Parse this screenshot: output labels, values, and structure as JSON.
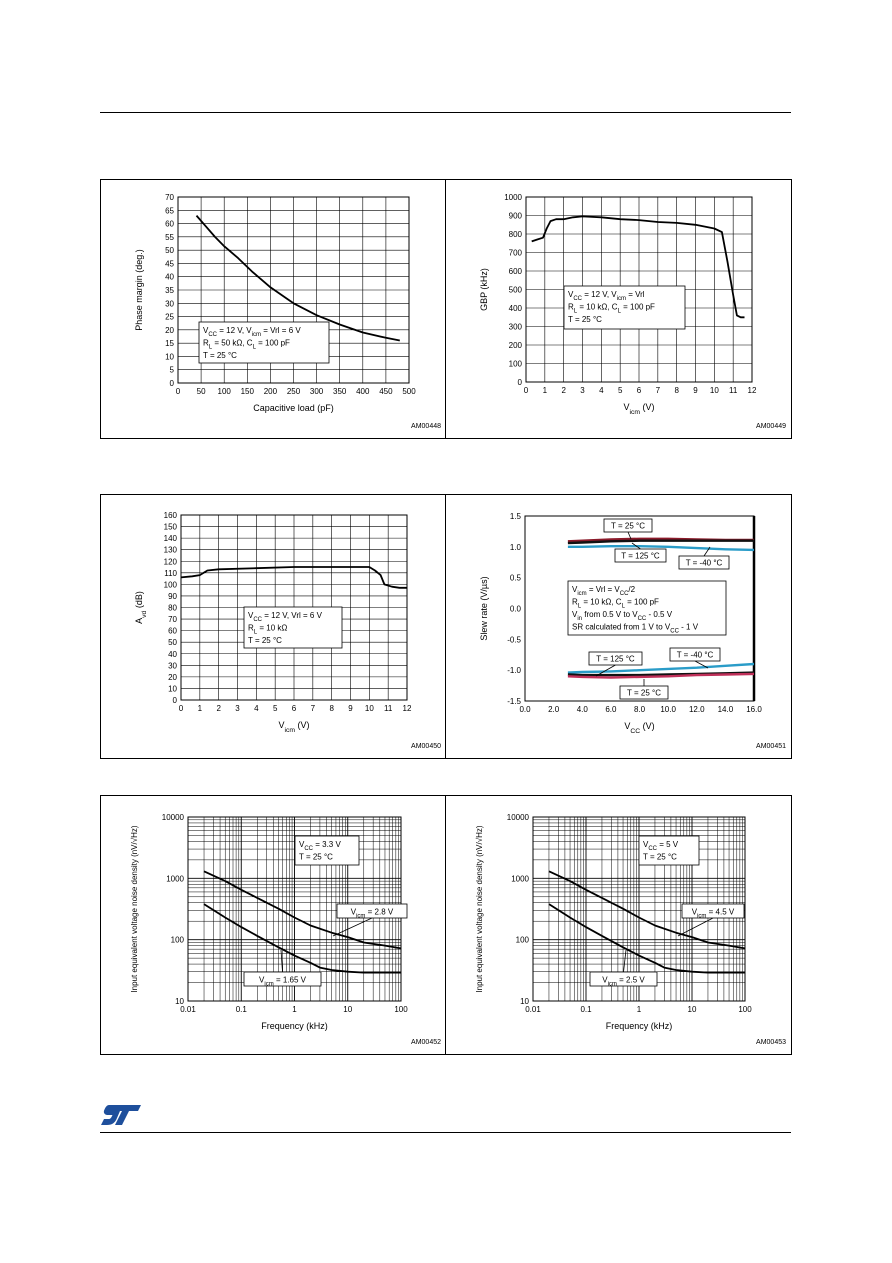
{
  "page": {
    "logo_text": "ST"
  },
  "chart_data": [
    {
      "id": "c1",
      "type": "line",
      "code": "AM00448",
      "xlabel": "Capacitive load (pF)",
      "ylabel": "Phase margin (deg.)",
      "xlim": [
        0,
        500
      ],
      "ylim": [
        0,
        70
      ],
      "xticks": [
        0,
        50,
        100,
        150,
        200,
        250,
        300,
        350,
        400,
        450,
        500
      ],
      "yticks": [
        0,
        5,
        10,
        15,
        20,
        25,
        30,
        35,
        40,
        45,
        50,
        55,
        60,
        65,
        70
      ],
      "grid": true,
      "series": [
        {
          "color": "#000000",
          "x": [
            40,
            60,
            80,
            100,
            130,
            160,
            200,
            250,
            300,
            350,
            400,
            450,
            480
          ],
          "y": [
            63,
            59,
            55,
            51.5,
            47,
            42,
            36,
            30,
            25.5,
            22,
            19,
            17,
            16
          ]
        }
      ],
      "annotation_lines": [
        {
          "parts": [
            [
              "V",
              ""
            ],
            [
              "CC",
              "sub"
            ],
            [
              " = 12 V, V",
              ""
            ],
            [
              "icm",
              "sub"
            ],
            [
              " = Vrl = 6 V",
              ""
            ]
          ]
        },
        {
          "parts": [
            [
              "R",
              ""
            ],
            [
              "L",
              "sub"
            ],
            [
              " = 50 kΩ, C",
              ""
            ],
            [
              "L",
              "sub"
            ],
            [
              " = 100 pF",
              ""
            ]
          ]
        },
        {
          "parts": [
            [
              "T = 25 °C",
              ""
            ]
          ]
        }
      ]
    },
    {
      "id": "c2",
      "type": "line",
      "code": "AM00449",
      "xlabel": "V",
      "xlabel_sub": "icm",
      "xlabel_suffix": " (V)",
      "ylabel": "GBP (kHz)",
      "xlim": [
        0,
        12
      ],
      "ylim": [
        0,
        1000
      ],
      "xticks": [
        0,
        1,
        2,
        3,
        4,
        5,
        6,
        7,
        8,
        9,
        10,
        11,
        12
      ],
      "yticks": [
        0,
        100,
        200,
        300,
        400,
        500,
        600,
        700,
        800,
        900,
        1000
      ],
      "grid": true,
      "series": [
        {
          "color": "#000000",
          "x": [
            0.3,
            0.6,
            0.9,
            1.1,
            1.3,
            1.6,
            2,
            2.5,
            3,
            4,
            5,
            6,
            7,
            8,
            9,
            10,
            10.4,
            10.7,
            11,
            11.2,
            11.4,
            11.6
          ],
          "y": [
            760,
            770,
            780,
            830,
            870,
            880,
            880,
            890,
            895,
            890,
            880,
            875,
            865,
            860,
            850,
            830,
            810,
            650,
            470,
            360,
            350,
            350
          ]
        }
      ],
      "annotation_lines": [
        {
          "parts": [
            [
              "V",
              ""
            ],
            [
              "CC",
              "sub"
            ],
            [
              " = 12 V, V",
              ""
            ],
            [
              "icm",
              "sub"
            ],
            [
              " = Vrl",
              ""
            ]
          ]
        },
        {
          "parts": [
            [
              "R",
              ""
            ],
            [
              "L",
              "sub"
            ],
            [
              " = 10 kΩ, C",
              ""
            ],
            [
              "L",
              "sub"
            ],
            [
              " = 100 pF",
              ""
            ]
          ]
        },
        {
          "parts": [
            [
              "T = 25 °C",
              ""
            ]
          ]
        }
      ]
    },
    {
      "id": "c3",
      "type": "line",
      "code": "AM00450",
      "xlabel": "V",
      "xlabel_sub": "icm",
      "xlabel_suffix": " (V)",
      "ylabel": "A",
      "ylabel_sub": "vd",
      "ylabel_suffix": " (dB)",
      "xlim": [
        0,
        12
      ],
      "ylim": [
        0,
        160
      ],
      "xticks": [
        0,
        1,
        2,
        3,
        4,
        5,
        6,
        7,
        8,
        9,
        10,
        11,
        12
      ],
      "yticks": [
        0,
        10,
        20,
        30,
        40,
        50,
        60,
        70,
        80,
        90,
        100,
        110,
        120,
        130,
        140,
        150,
        160
      ],
      "grid": true,
      "series": [
        {
          "color": "#000000",
          "x": [
            0,
            0.6,
            1,
            1.4,
            2,
            4,
            6,
            8,
            9,
            10,
            10.3,
            10.6,
            10.8,
            11.2,
            11.6,
            12
          ],
          "y": [
            106,
            107,
            108,
            112,
            113,
            114,
            115,
            115,
            115,
            115,
            112,
            108,
            100,
            98,
            97,
            97
          ]
        }
      ],
      "annotation_lines": [
        {
          "parts": [
            [
              "V",
              ""
            ],
            [
              "CC",
              "sub"
            ],
            [
              " = 12 V, Vrl = 6 V",
              ""
            ]
          ]
        },
        {
          "parts": [
            [
              "R",
              ""
            ],
            [
              "L",
              "sub"
            ],
            [
              " = 10 kΩ",
              ""
            ]
          ]
        },
        {
          "parts": [
            [
              "T = 25 °C",
              ""
            ]
          ]
        }
      ]
    },
    {
      "id": "c4",
      "type": "line",
      "code": "AM00451",
      "xlabel": "V",
      "xlabel_sub": "CC",
      "xlabel_suffix": " (V)",
      "ylabel": "Slew rate (V/µs)",
      "xlim": [
        0,
        16
      ],
      "ylim": [
        -1.5,
        1.5
      ],
      "xticks": [
        0.0,
        2.0,
        4.0,
        6.0,
        8.0,
        10.0,
        12.0,
        14.0,
        16.0
      ],
      "xtick_decimals": 1,
      "ytick_decimals": 1,
      "yticks": [
        -1.5,
        -1.0,
        -0.5,
        0.0,
        0.5,
        1.0,
        1.5
      ],
      "grid": false,
      "series": [
        {
          "name": "T = 25 °C",
          "color": "#8b1a2a",
          "x": [
            3,
            4,
            6,
            8,
            10,
            12,
            14,
            16
          ],
          "y": [
            1.09,
            1.1,
            1.12,
            1.13,
            1.13,
            1.12,
            1.11,
            1.11
          ]
        },
        {
          "name": "T = 125 °C",
          "color": "#111111",
          "x": [
            3,
            4,
            6,
            8,
            10,
            12,
            14,
            16
          ],
          "y": [
            1.06,
            1.07,
            1.09,
            1.1,
            1.1,
            1.1,
            1.1,
            1.1
          ]
        },
        {
          "name": "T = -40 °C",
          "color": "#2a9cc8",
          "x": [
            3,
            4,
            6,
            8,
            10,
            12,
            14,
            16
          ],
          "y": [
            1.0,
            1.0,
            1.01,
            1.01,
            1.0,
            0.98,
            0.96,
            0.95
          ]
        },
        {
          "name": "T = -40 °C",
          "color": "#2a9cc8",
          "x": [
            3,
            4,
            6,
            8,
            10,
            12,
            14,
            16
          ],
          "y": [
            -1.04,
            -1.03,
            -1.02,
            -1.0,
            -0.98,
            -0.96,
            -0.93,
            -0.9
          ]
        },
        {
          "name": "T = 125 °C",
          "color": "#111111",
          "x": [
            3,
            4,
            6,
            8,
            10,
            12,
            14,
            16
          ],
          "y": [
            -1.07,
            -1.08,
            -1.08,
            -1.08,
            -1.07,
            -1.06,
            -1.05,
            -1.04
          ]
        },
        {
          "name": "T = 25 °C",
          "color": "#c0305a",
          "x": [
            3,
            4,
            6,
            8,
            10,
            12,
            14,
            16
          ],
          "y": [
            -1.1,
            -1.11,
            -1.12,
            -1.11,
            -1.1,
            -1.08,
            -1.07,
            -1.06
          ]
        }
      ],
      "annotation_lines": [
        {
          "parts": [
            [
              "V",
              ""
            ],
            [
              "icm",
              "sub"
            ],
            [
              " = Vrl = V",
              ""
            ],
            [
              "CC",
              "sub"
            ],
            [
              "/2",
              ""
            ]
          ]
        },
        {
          "parts": [
            [
              "R",
              ""
            ],
            [
              "L",
              "sub"
            ],
            [
              " = 10 kΩ, C",
              ""
            ],
            [
              "L",
              "sub"
            ],
            [
              " = 100 pF",
              ""
            ]
          ]
        },
        {
          "parts": [
            [
              "V",
              ""
            ],
            [
              "in",
              "sub"
            ],
            [
              " from 0.5 V to V",
              ""
            ],
            [
              "CC",
              "sub"
            ],
            [
              " - 0.5 V",
              ""
            ]
          ]
        },
        {
          "parts": [
            [
              "SR calculated from 1 V to V",
              ""
            ],
            [
              "CC",
              "sub"
            ],
            [
              " - 1 V",
              ""
            ]
          ]
        }
      ]
    },
    {
      "id": "c5",
      "type": "line",
      "code": "AM00452",
      "log": true,
      "xlabel": "Frequency (kHz)",
      "ylabel": "Input equivalent voltage noise density (nV/√Hz)",
      "xlim": [
        0.01,
        100
      ],
      "ylim": [
        10,
        10000
      ],
      "xticks": [
        0.01,
        0.1,
        1,
        10,
        100
      ],
      "xtick_labels": [
        "0.01",
        "0.1",
        "1",
        "10",
        "100"
      ],
      "yticks": [
        10,
        100,
        1000,
        10000
      ],
      "ytick_labels": [
        "10",
        "100",
        "1000",
        "10000"
      ],
      "grid": true,
      "series": [
        {
          "name": "V icm = 2.8 V",
          "color": "#000000",
          "x": [
            0.02,
            0.05,
            0.1,
            0.2,
            0.5,
            1,
            2,
            5,
            10,
            20,
            50,
            100
          ],
          "y": [
            1300,
            900,
            650,
            480,
            320,
            230,
            170,
            130,
            110,
            90,
            80,
            72
          ]
        },
        {
          "name": "V icm = 1.65 V",
          "color": "#000000",
          "x": [
            0.02,
            0.05,
            0.1,
            0.2,
            0.5,
            1,
            2,
            3,
            5,
            10,
            20,
            50,
            100
          ],
          "y": [
            380,
            230,
            160,
            115,
            75,
            55,
            42,
            35,
            32,
            30,
            29,
            29,
            29
          ]
        }
      ],
      "annotation_lines": [
        {
          "parts": [
            [
              "V",
              ""
            ],
            [
              "CC",
              "sub"
            ],
            [
              " = 3.3 V",
              ""
            ]
          ]
        },
        {
          "parts": [
            [
              "T = 25 °C",
              ""
            ]
          ]
        }
      ]
    },
    {
      "id": "c6",
      "type": "line",
      "code": "AM00453",
      "log": true,
      "xlabel": "Frequency (kHz)",
      "ylabel": "Input equivalent voltage noise density (nV/√Hz)",
      "xlim": [
        0.01,
        100
      ],
      "ylim": [
        10,
        10000
      ],
      "xticks": [
        0.01,
        0.1,
        1,
        10,
        100
      ],
      "xtick_labels": [
        "0.01",
        "0.1",
        "1",
        "10",
        "100"
      ],
      "yticks": [
        10,
        100,
        1000,
        10000
      ],
      "ytick_labels": [
        "10",
        "100",
        "1000",
        "10000"
      ],
      "grid": true,
      "series": [
        {
          "name": "V icm = 4.5 V",
          "color": "#000000",
          "x": [
            0.02,
            0.05,
            0.1,
            0.2,
            0.5,
            1,
            2,
            5,
            10,
            20,
            50,
            100
          ],
          "y": [
            1300,
            900,
            650,
            480,
            320,
            230,
            170,
            130,
            110,
            90,
            80,
            72
          ]
        },
        {
          "name": "V icm = 2.5 V",
          "color": "#000000",
          "x": [
            0.02,
            0.05,
            0.1,
            0.2,
            0.5,
            1,
            2,
            3,
            5,
            10,
            20,
            50,
            100
          ],
          "y": [
            380,
            230,
            160,
            115,
            75,
            55,
            42,
            35,
            32,
            30,
            29,
            29,
            29
          ]
        }
      ],
      "annotation_lines": [
        {
          "parts": [
            [
              "V",
              ""
            ],
            [
              "CC",
              "sub"
            ],
            [
              " = 5 V",
              ""
            ]
          ]
        },
        {
          "parts": [
            [
              "T = 25 °C",
              ""
            ]
          ]
        }
      ]
    }
  ]
}
